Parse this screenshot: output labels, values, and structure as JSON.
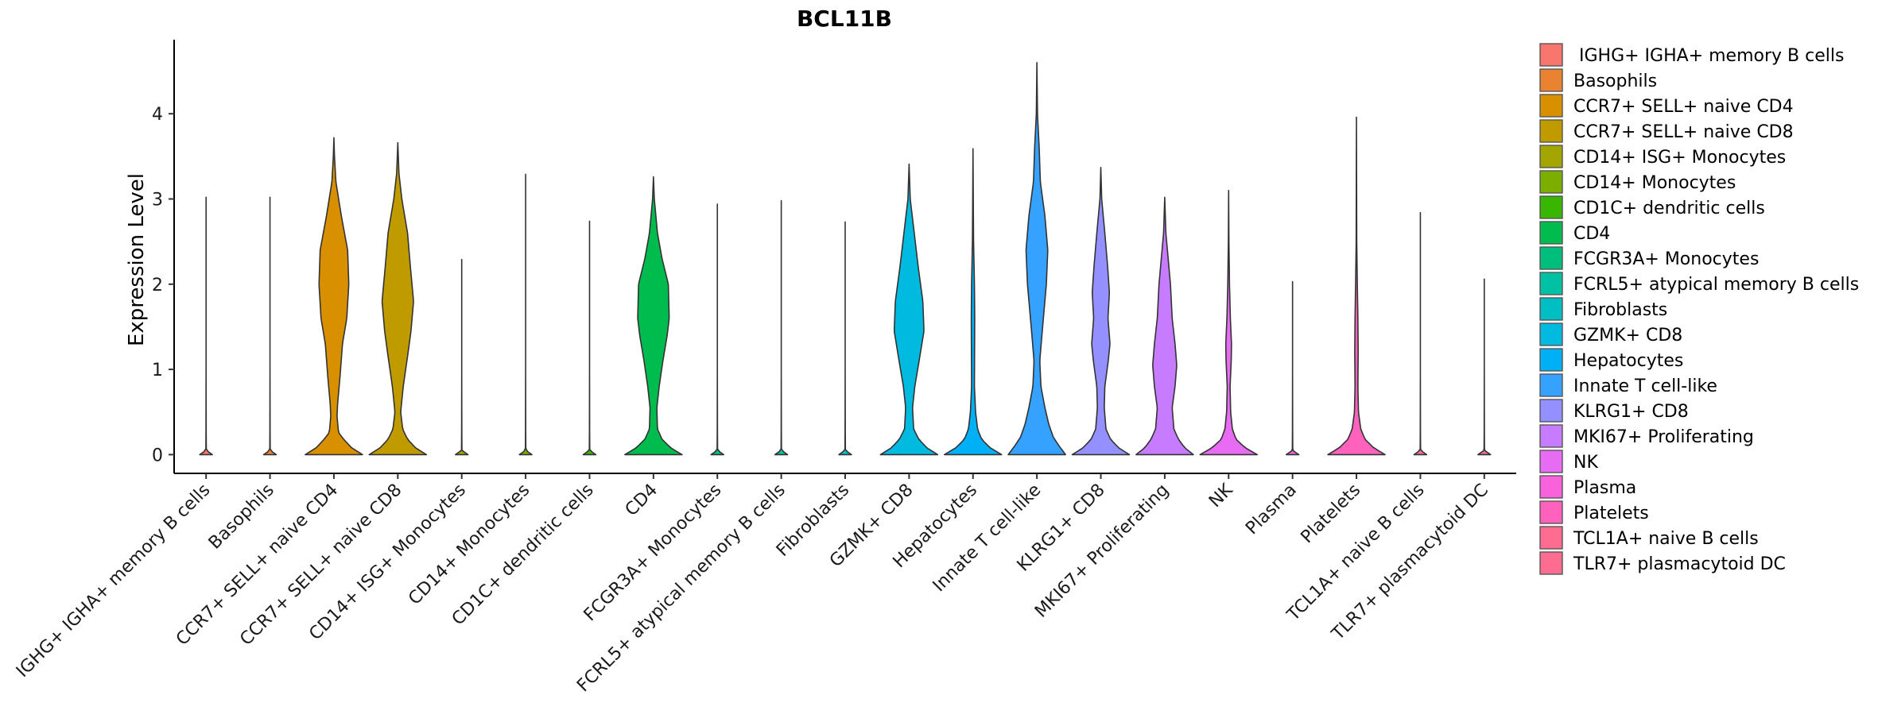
{
  "chart_data": {
    "type": "violin",
    "title": "BCL11B",
    "xlabel": "",
    "ylabel": "Expression Level",
    "ylim": [
      -0.22,
      4.85
    ],
    "yticks": [
      0,
      1,
      2,
      3,
      4
    ],
    "legend_position": "right",
    "categories": [
      {
        "name": "IGHG+ IGHA+ memory B cells",
        "legend_label": " IGHG+ IGHA+ memory B cells",
        "color": "#F8766D",
        "max": 3.02,
        "profile": [
          [
            0,
            0.22
          ],
          [
            0.05,
            0.008
          ],
          [
            0.25,
            0.004
          ],
          [
            1,
            0
          ]
        ]
      },
      {
        "name": "Basophils",
        "legend_label": "Basophils",
        "color": "#EA8331",
        "max": 3.02,
        "profile": [
          [
            0,
            0.22
          ],
          [
            0.05,
            0.008
          ],
          [
            0.25,
            0.004
          ],
          [
            1,
            0
          ]
        ]
      },
      {
        "name": "CCR7+ SELL+ naive CD4",
        "legend_label": "CCR7+ SELL+ naive CD4",
        "color": "#D89000",
        "max": 3.72,
        "profile": [
          [
            0,
            1.0
          ],
          [
            0.08,
            0.62
          ],
          [
            0.18,
            0.34
          ],
          [
            0.26,
            0.16
          ],
          [
            0.45,
            0.11
          ],
          [
            0.6,
            0.13
          ],
          [
            0.9,
            0.21
          ],
          [
            1.3,
            0.3
          ],
          [
            1.6,
            0.45
          ],
          [
            2.0,
            0.52
          ],
          [
            2.4,
            0.48
          ],
          [
            2.8,
            0.26
          ],
          [
            3.2,
            0.07
          ],
          [
            3.5,
            0.02
          ],
          [
            3.72,
            0
          ]
        ]
      },
      {
        "name": "CCR7+ SELL+ naive CD8",
        "legend_label": "CCR7+ SELL+ naive CD8",
        "color": "#C09B00",
        "max": 3.66,
        "profile": [
          [
            0,
            1.0
          ],
          [
            0.08,
            0.62
          ],
          [
            0.18,
            0.34
          ],
          [
            0.3,
            0.17
          ],
          [
            0.5,
            0.1
          ],
          [
            0.8,
            0.19
          ],
          [
            1.2,
            0.36
          ],
          [
            1.45,
            0.46
          ],
          [
            1.8,
            0.55
          ],
          [
            2.2,
            0.44
          ],
          [
            2.6,
            0.34
          ],
          [
            3.0,
            0.14
          ],
          [
            3.3,
            0.04
          ],
          [
            3.66,
            0
          ]
        ]
      },
      {
        "name": "CD14+ ISG+ Monocytes",
        "legend_label": "CD14+ ISG+ Monocytes",
        "color": "#A3A500",
        "max": 2.29,
        "profile": [
          [
            0,
            0.22
          ],
          [
            0.05,
            0.008
          ],
          [
            0.25,
            0.004
          ],
          [
            1,
            0
          ]
        ]
      },
      {
        "name": "CD14+ Monocytes",
        "legend_label": "CD14+ Monocytes",
        "color": "#7CAE00",
        "max": 3.29,
        "profile": [
          [
            0,
            0.22
          ],
          [
            0.05,
            0.008
          ],
          [
            0.25,
            0.004
          ],
          [
            1,
            0
          ]
        ]
      },
      {
        "name": "CD1C+ dendritic cells",
        "legend_label": "CD1C+ dendritic cells",
        "color": "#39B600",
        "max": 2.74,
        "profile": [
          [
            0,
            0.22
          ],
          [
            0.05,
            0.008
          ],
          [
            0.25,
            0.004
          ],
          [
            1,
            0
          ]
        ]
      },
      {
        "name": "CD4",
        "legend_label": "CD4",
        "color": "#00BB4E",
        "max": 3.26,
        "profile": [
          [
            0,
            1.0
          ],
          [
            0.08,
            0.6
          ],
          [
            0.18,
            0.3
          ],
          [
            0.3,
            0.14
          ],
          [
            0.55,
            0.12
          ],
          [
            0.8,
            0.2
          ],
          [
            1.1,
            0.33
          ],
          [
            1.4,
            0.48
          ],
          [
            1.6,
            0.55
          ],
          [
            2.0,
            0.52
          ],
          [
            2.3,
            0.3
          ],
          [
            2.6,
            0.14
          ],
          [
            3.0,
            0.03
          ],
          [
            3.26,
            0
          ]
        ]
      },
      {
        "name": "FCGR3A+ Monocytes",
        "legend_label": "FCGR3A+ Monocytes",
        "color": "#00BF7D",
        "max": 2.94,
        "profile": [
          [
            0,
            0.22
          ],
          [
            0.05,
            0.008
          ],
          [
            0.25,
            0.004
          ],
          [
            1,
            0
          ]
        ]
      },
      {
        "name": "FCRL5+ atypical memory B cells",
        "legend_label": "FCRL5+ atypical memory B cells",
        "color": "#00C1A3",
        "max": 2.98,
        "profile": [
          [
            0,
            0.22
          ],
          [
            0.05,
            0.008
          ],
          [
            0.25,
            0.004
          ],
          [
            1,
            0
          ]
        ]
      },
      {
        "name": "Fibroblasts",
        "legend_label": "Fibroblasts",
        "color": "#00BFC4",
        "max": 2.73,
        "profile": [
          [
            0,
            0.22
          ],
          [
            0.05,
            0.008
          ],
          [
            0.25,
            0.004
          ],
          [
            1,
            0
          ]
        ]
      },
      {
        "name": "GZMK+ CD8",
        "legend_label": "GZMK+ CD8",
        "color": "#00BAE0",
        "max": 3.41,
        "profile": [
          [
            0,
            1.0
          ],
          [
            0.08,
            0.62
          ],
          [
            0.18,
            0.34
          ],
          [
            0.3,
            0.16
          ],
          [
            0.55,
            0.12
          ],
          [
            0.8,
            0.2
          ],
          [
            1.1,
            0.35
          ],
          [
            1.45,
            0.52
          ],
          [
            1.8,
            0.48
          ],
          [
            2.2,
            0.32
          ],
          [
            2.6,
            0.18
          ],
          [
            3.0,
            0.04
          ],
          [
            3.41,
            0
          ]
        ]
      },
      {
        "name": "Hepatocytes",
        "legend_label": "Hepatocytes",
        "color": "#00B0F6",
        "max": 3.59,
        "profile": [
          [
            0,
            1.0
          ],
          [
            0.08,
            0.6
          ],
          [
            0.18,
            0.3
          ],
          [
            0.3,
            0.16
          ],
          [
            0.5,
            0.09
          ],
          [
            0.8,
            0.05
          ],
          [
            1.2,
            0.055
          ],
          [
            1.6,
            0.06
          ],
          [
            2.0,
            0.05
          ],
          [
            2.5,
            0.02
          ],
          [
            3.0,
            0.01
          ],
          [
            3.59,
            0
          ]
        ]
      },
      {
        "name": "Innate T cell-like",
        "legend_label": "Innate T cell-like",
        "color": "#35A2FF",
        "max": 4.6,
        "profile": [
          [
            0,
            1.0
          ],
          [
            0.1,
            0.78
          ],
          [
            0.2,
            0.58
          ],
          [
            0.35,
            0.42
          ],
          [
            0.55,
            0.28
          ],
          [
            0.8,
            0.14
          ],
          [
            1.1,
            0.1
          ],
          [
            1.5,
            0.2
          ],
          [
            2.0,
            0.33
          ],
          [
            2.4,
            0.38
          ],
          [
            2.8,
            0.28
          ],
          [
            3.2,
            0.12
          ],
          [
            3.6,
            0.08
          ],
          [
            4.0,
            0.02
          ],
          [
            4.6,
            0
          ]
        ]
      },
      {
        "name": "KLRG1+ CD8",
        "legend_label": "KLRG1+ CD8",
        "color": "#9590FF",
        "max": 3.37,
        "profile": [
          [
            0,
            1.0
          ],
          [
            0.08,
            0.62
          ],
          [
            0.18,
            0.34
          ],
          [
            0.3,
            0.18
          ],
          [
            0.55,
            0.12
          ],
          [
            0.8,
            0.14
          ],
          [
            1.1,
            0.26
          ],
          [
            1.3,
            0.32
          ],
          [
            1.6,
            0.25
          ],
          [
            1.9,
            0.3
          ],
          [
            2.2,
            0.24
          ],
          [
            2.6,
            0.14
          ],
          [
            3.0,
            0.03
          ],
          [
            3.37,
            0
          ]
        ]
      },
      {
        "name": "MKI67+ Proliferating",
        "legend_label": "MKI67+ Proliferating",
        "color": "#C77CFF",
        "max": 3.02,
        "profile": [
          [
            0,
            1.0
          ],
          [
            0.08,
            0.7
          ],
          [
            0.18,
            0.48
          ],
          [
            0.3,
            0.32
          ],
          [
            0.55,
            0.26
          ],
          [
            0.8,
            0.36
          ],
          [
            1.05,
            0.42
          ],
          [
            1.3,
            0.36
          ],
          [
            1.6,
            0.26
          ],
          [
            2.0,
            0.2
          ],
          [
            2.3,
            0.12
          ],
          [
            2.6,
            0.04
          ],
          [
            3.02,
            0
          ]
        ]
      },
      {
        "name": "NK",
        "legend_label": "NK",
        "color": "#E76BF3",
        "max": 3.1,
        "profile": [
          [
            0,
            1.0
          ],
          [
            0.08,
            0.58
          ],
          [
            0.18,
            0.26
          ],
          [
            0.3,
            0.13
          ],
          [
            0.5,
            0.07
          ],
          [
            0.8,
            0.05
          ],
          [
            1.1,
            0.09
          ],
          [
            1.3,
            0.1
          ],
          [
            1.6,
            0.06
          ],
          [
            2.0,
            0.03
          ],
          [
            2.5,
            0.01
          ],
          [
            3.1,
            0
          ]
        ]
      },
      {
        "name": "Plasma",
        "legend_label": "Plasma",
        "color": "#FA62DB",
        "max": 2.03,
        "profile": [
          [
            0,
            0.22
          ],
          [
            0.05,
            0.008
          ],
          [
            0.25,
            0.004
          ],
          [
            1,
            0
          ]
        ]
      },
      {
        "name": "Platelets",
        "legend_label": "Platelets",
        "color": "#FF62BC",
        "max": 3.96,
        "profile": [
          [
            0,
            1.0
          ],
          [
            0.08,
            0.6
          ],
          [
            0.18,
            0.3
          ],
          [
            0.3,
            0.15
          ],
          [
            0.5,
            0.07
          ],
          [
            0.8,
            0.05
          ],
          [
            1.2,
            0.06
          ],
          [
            1.6,
            0.05
          ],
          [
            2.0,
            0.03
          ],
          [
            2.5,
            0.01
          ],
          [
            3.96,
            0
          ]
        ]
      },
      {
        "name": "TCL1A+ naive B cells",
        "legend_label": "TCL1A+ naive B cells",
        "color": "#FF6C91",
        "max": 2.84,
        "profile": [
          [
            0,
            0.22
          ],
          [
            0.05,
            0.008
          ],
          [
            0.25,
            0.004
          ],
          [
            1,
            0
          ]
        ]
      },
      {
        "name": "TLR7+ plasmacytoid DC",
        "legend_label": "TLR7+ plasmacytoid DC",
        "color": "#FF6C91",
        "max": 2.06,
        "profile": [
          [
            0,
            0.22
          ],
          [
            0.05,
            0.008
          ],
          [
            0.25,
            0.004
          ],
          [
            1,
            0
          ]
        ]
      }
    ]
  }
}
